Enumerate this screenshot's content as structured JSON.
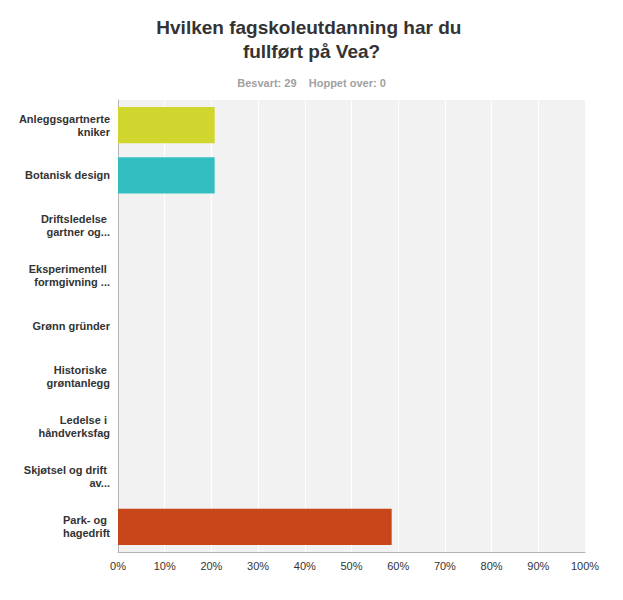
{
  "chart_data": {
    "type": "bar",
    "orientation": "horizontal",
    "title": "Hvilken fagskoleutdanning har du fullført på Vea?",
    "subtitle": "Besvart: 29    Hoppet over: 0",
    "categories": [
      "Anleggsgartnertekniker",
      "Botanisk design",
      "Driftsledelse gartner og...",
      "Eksperimentell formgivning ...",
      "Grønn gründer",
      "Historiske grøntanlegg",
      "Ledelse i håndverksfag",
      "Skjøtsel og drift av...",
      "Park- og hagedrift"
    ],
    "values": [
      20.7,
      20.7,
      0,
      0,
      0,
      0,
      0,
      0,
      58.6
    ],
    "colors": [
      "#d1d62e",
      "#33bfc1",
      "#9aa0a6",
      "#9aa0a6",
      "#9aa0a6",
      "#9aa0a6",
      "#9aa0a6",
      "#9aa0a6",
      "#c9451a"
    ],
    "xlim": [
      0,
      100
    ],
    "xticks": [
      {
        "value": 0,
        "label": "0%"
      },
      {
        "value": 10,
        "label": "10%"
      },
      {
        "value": 20,
        "label": "20%"
      },
      {
        "value": 30,
        "label": "30%"
      },
      {
        "value": 40,
        "label": "40%"
      },
      {
        "value": 50,
        "label": "50%"
      },
      {
        "value": 60,
        "label": "60%"
      },
      {
        "value": 70,
        "label": "70%"
      },
      {
        "value": 80,
        "label": "80%"
      },
      {
        "value": 90,
        "label": "90%"
      },
      {
        "value": 100,
        "label": "100%"
      }
    ],
    "grid": true
  }
}
